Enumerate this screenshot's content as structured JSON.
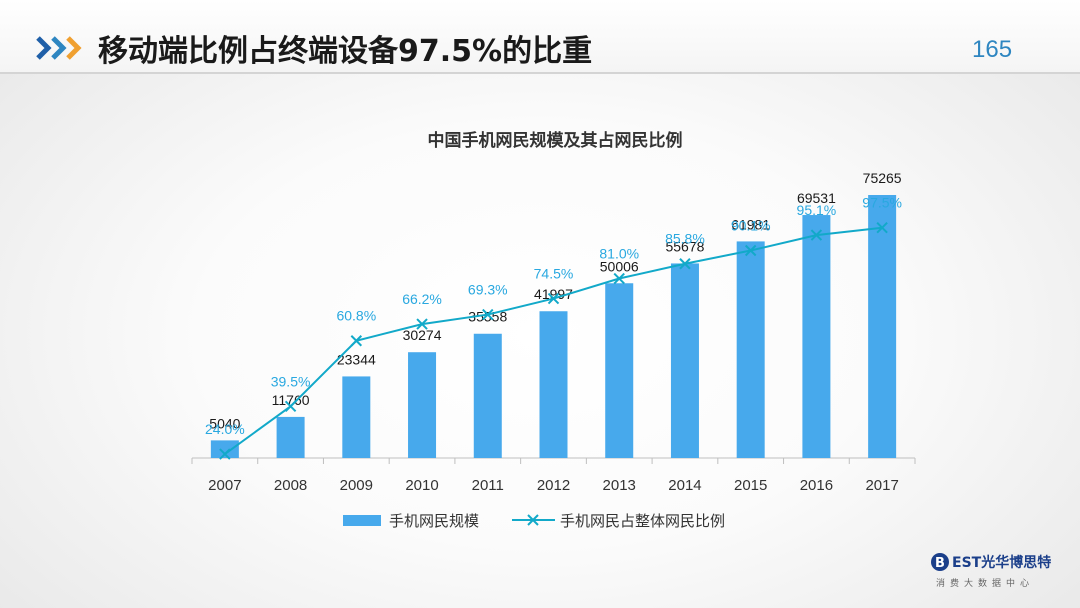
{
  "header": {
    "title": "移动端比例占终端设备97.5%的比重",
    "page_number": "165"
  },
  "colors": {
    "bar": "#47a9ec",
    "line": "#12a9c9",
    "pct_label": "#29a8e0",
    "value_label": "#1a1a1a",
    "axis": "#bfbfbf",
    "accent": "#2e86c1"
  },
  "chart_data": {
    "type": "bar",
    "title": "中国手机网民规模及其占网民比例",
    "categories": [
      "2007",
      "2008",
      "2009",
      "2010",
      "2011",
      "2012",
      "2013",
      "2014",
      "2015",
      "2016",
      "2017"
    ],
    "series": [
      {
        "name": "手机网民规模",
        "type": "bar",
        "values": [
          5040,
          11760,
          23344,
          30274,
          35558,
          41997,
          50006,
          55678,
          61981,
          69531,
          75265
        ],
        "labels": [
          "5040",
          "11760",
          "23344",
          "30274",
          "35558",
          "41997",
          "50006",
          "55678",
          "61981",
          "69531",
          "75265"
        ]
      },
      {
        "name": "手机网民占整体网民比例",
        "type": "line",
        "values": [
          24.0,
          39.5,
          60.8,
          66.2,
          69.3,
          74.5,
          81.0,
          85.8,
          90.1,
          95.1,
          97.5
        ],
        "labels": [
          "24.0%",
          "39.5%",
          "60.8%",
          "66.2%",
          "69.3%",
          "74.5%",
          "81.0%",
          "85.8%",
          "90.1%",
          "95.1%",
          "97.5%"
        ]
      }
    ],
    "legend_position": "bottom",
    "grid": false
  },
  "brand": {
    "logo_letter": "B",
    "name": "EST光华博思特",
    "tagline": "消费大数据中心"
  }
}
